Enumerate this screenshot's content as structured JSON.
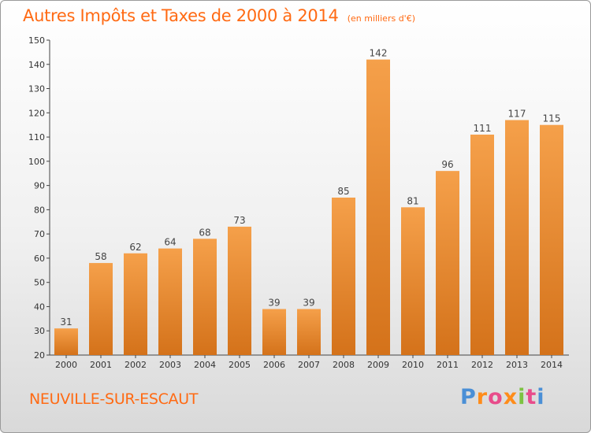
{
  "title": {
    "main": "Autres Impôts et Taxes de 2000 à 2014",
    "sub": "(en milliers d'€)"
  },
  "commune": "NEUVILLE-SUR-ESCAUT",
  "logo": {
    "text": "Proxiti",
    "colors": [
      "#4a8fd6",
      "#ff8c1a",
      "#e84c8b",
      "#7cc242"
    ]
  },
  "chart_data": {
    "type": "bar",
    "categories": [
      "2000",
      "2001",
      "2002",
      "2003",
      "2004",
      "2005",
      "2006",
      "2007",
      "2008",
      "2009",
      "2010",
      "2011",
      "2012",
      "2013",
      "2014"
    ],
    "values": [
      31,
      58,
      62,
      64,
      68,
      73,
      39,
      39,
      85,
      142,
      81,
      96,
      111,
      117,
      115
    ],
    "ylim": [
      20,
      150
    ],
    "yticks": [
      20,
      30,
      40,
      50,
      60,
      70,
      80,
      90,
      100,
      110,
      120,
      130,
      140,
      150
    ],
    "grid": false,
    "bar_color": "#f5a04a",
    "bar_color_dark": "#d4721a"
  }
}
